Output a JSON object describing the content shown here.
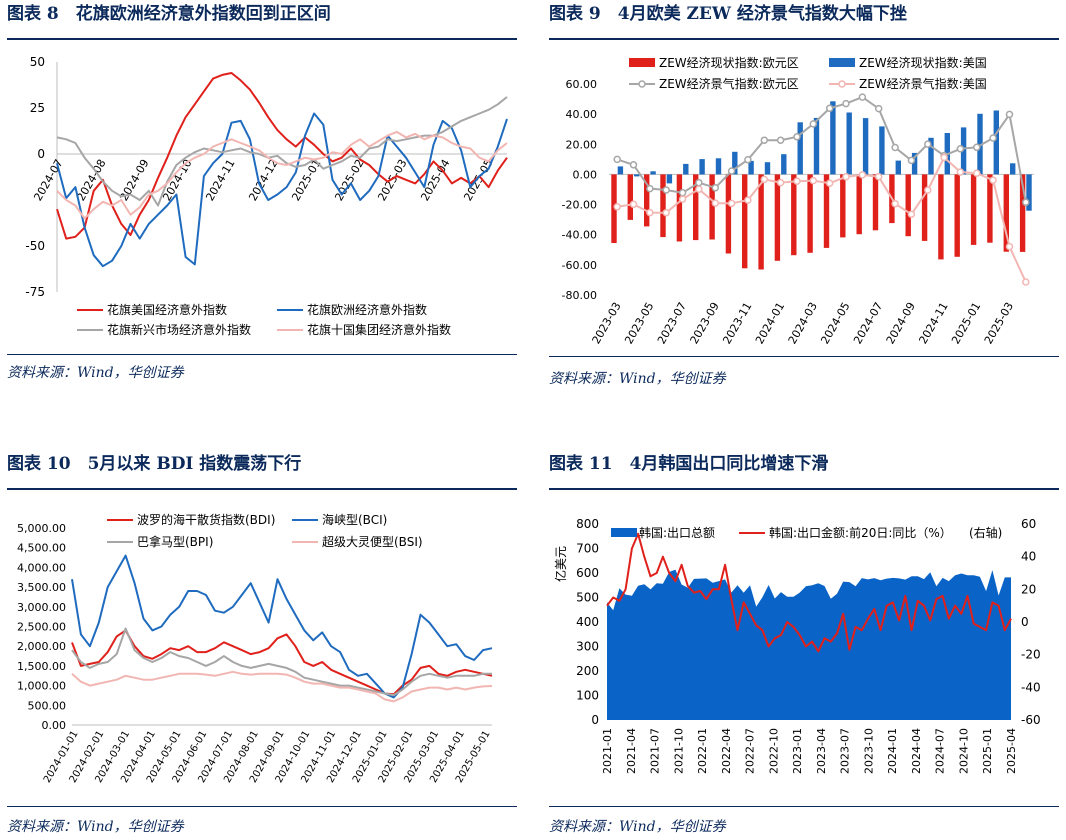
{
  "panels": [
    {
      "title": "图表 8　花旗欧洲经济意外指数回到正区间",
      "source": "资料来源：Wind，华创证券"
    },
    {
      "title": "图表 9　4月欧美 ZEW 经济景气指数大幅下挫",
      "source": "资料来源：Wind，华创证券"
    },
    {
      "title": "图表 10　5月以来 BDI 指数震荡下行",
      "source": "资料来源：Wind，华创证券"
    },
    {
      "title": "图表 11　4月韩国出口同比增速下滑",
      "source": "资料来源：Wind，华创证券"
    }
  ],
  "chart_data": [
    {
      "type": "line",
      "ylim": [
        -75,
        50
      ],
      "yticks": [
        50,
        25,
        0,
        -50,
        -75
      ],
      "xticks": [
        "2024-07",
        "2024-08",
        "2024-09",
        "2024-10",
        "2024-11",
        "2024-12",
        "2025-01",
        "2025-02",
        "2025-03",
        "2025-04",
        "2025-05"
      ],
      "grid": false,
      "legend_position": "bottom",
      "series": [
        {
          "name": "花旗美国经济意外指数",
          "color": "#e0201b",
          "values": [
            -30,
            -46,
            -45,
            -40,
            -20,
            -14,
            -28,
            -38,
            -44,
            -33,
            -25,
            -13,
            -2,
            10,
            20,
            27,
            34,
            41,
            43,
            44,
            40,
            35,
            28,
            20,
            13,
            8,
            4,
            9,
            5,
            0,
            -4,
            -2,
            3,
            -3,
            -6,
            -11,
            -15,
            -12,
            -14,
            -16,
            -11,
            -4,
            -9,
            -16,
            -13,
            -16,
            -12,
            -18,
            -9,
            -2
          ]
        },
        {
          "name": "花旗欧洲经济意外指数",
          "color": "#1f6bbf",
          "values": [
            -5,
            -24,
            -18,
            -40,
            -55,
            -61,
            -58,
            -50,
            -38,
            -46,
            -38,
            -33,
            -28,
            -22,
            -56,
            -60,
            -12,
            -5,
            0,
            17,
            18,
            8,
            -16,
            -25,
            -22,
            -18,
            -10,
            10,
            22,
            16,
            -14,
            -22,
            -16,
            -25,
            -20,
            -12,
            10,
            4,
            -2,
            -10,
            -18,
            5,
            18,
            14,
            2,
            -18,
            -12,
            -8,
            4,
            19
          ]
        },
        {
          "name": "花旗新兴市场经济意外指数",
          "color": "#a6a6a6",
          "values": [
            9,
            8,
            6,
            -2,
            -8,
            -15,
            -20,
            -23,
            -22,
            -25,
            -20,
            -28,
            -15,
            -6,
            -2,
            1,
            3,
            2,
            1,
            2,
            3,
            1,
            0,
            -2,
            -1,
            -5,
            -7,
            -6,
            -3,
            -8,
            -6,
            -4,
            -1,
            -2,
            3,
            4,
            8,
            7,
            8,
            9,
            10,
            10,
            12,
            15,
            18,
            20,
            22,
            24,
            27,
            31
          ]
        },
        {
          "name": "花旗十国集团经济意外指数",
          "color": "#f2b6b2",
          "values": [
            -20,
            -25,
            -28,
            -35,
            -30,
            -26,
            -28,
            -25,
            -33,
            -29,
            -22,
            -20,
            -16,
            -10,
            -5,
            -2,
            0,
            4,
            6,
            8,
            6,
            4,
            2,
            -2,
            -5,
            -6,
            -4,
            -2,
            -3,
            -2,
            1,
            0,
            5,
            8,
            4,
            7,
            10,
            12,
            9,
            11,
            8,
            10,
            9,
            6,
            4,
            3,
            -2,
            -4,
            2,
            6
          ]
        }
      ]
    },
    {
      "type": "bar",
      "ylim": [
        -80,
        60
      ],
      "yticks": [
        "60.00",
        "40.00",
        "20.00",
        "0.00",
        "-20.00",
        "-40.00",
        "-60.00",
        "-80.00"
      ],
      "categories": [
        "2023-03",
        "2023-04",
        "2023-05",
        "2023-06",
        "2023-07",
        "2023-08",
        "2023-09",
        "2023-10",
        "2023-11",
        "2023-12",
        "2024-01",
        "2024-02",
        "2024-03",
        "2024-04",
        "2024-05",
        "2024-06",
        "2024-07",
        "2024-08",
        "2024-09",
        "2024-10",
        "2024-11",
        "2024-12",
        "2025-01",
        "2025-02",
        "2025-03",
        "2025-04"
      ],
      "xticks": [
        "2023-03",
        "2023-05",
        "2023-07",
        "2023-09",
        "2023-11",
        "2024-01",
        "2024-03",
        "2024-05",
        "2024-07",
        "2024-09",
        "2024-11",
        "2025-01",
        "2025-03"
      ],
      "legend_position": "top",
      "series": [
        {
          "name": "ZEW经济现状指数:欧元区",
          "kind": "bar",
          "color": "#e0201b",
          "values": [
            -45.5,
            -30.2,
            -34.5,
            -41.6,
            -44.5,
            -43.6,
            -43.2,
            -52.5,
            -62.3,
            -63.1,
            -57.3,
            -53.6,
            -52.0,
            -48.8,
            -41.8,
            -39.7,
            -37.1,
            -32.3,
            -41.0,
            -44.1,
            -56.4,
            -54.7,
            -46.8,
            -45.3,
            -51.3,
            -51.4
          ]
        },
        {
          "name": "ZEW经济现状指数:美国",
          "kind": "bar",
          "color": "#1f6bbf",
          "values": [
            5.3,
            -1.3,
            2.1,
            -6.0,
            7.0,
            10.2,
            10.7,
            15.0,
            9.0,
            8.1,
            13.4,
            34.6,
            37.5,
            48.5,
            41.1,
            37.4,
            31.9,
            9.2,
            14.3,
            24.3,
            27.5,
            31.2,
            40.2,
            42.4,
            7.4,
            -24.1
          ]
        },
        {
          "name": "ZEW经济景气指数:欧元区",
          "kind": "line",
          "color": "#a6a6a6",
          "values": [
            10.0,
            6.4,
            -9.4,
            -10.3,
            -12.2,
            -5.5,
            -8.9,
            2.3,
            9.8,
            22.7,
            22.7,
            25.0,
            33.5,
            43.9,
            47.0,
            51.3,
            43.7,
            17.9,
            9.3,
            20.1,
            12.5,
            17.0,
            18.0,
            24.2,
            39.8,
            -18.5
          ]
        },
        {
          "name": "ZEW经济景气指数:美国",
          "kind": "line",
          "color": "#f2b6b2",
          "values": [
            -21.5,
            -19.8,
            -25.3,
            -25.4,
            -16.4,
            -9.8,
            -19.0,
            -19.2,
            -17.0,
            -3.3,
            -5.4,
            -4.5,
            -4.1,
            -5.8,
            -1.6,
            -0.3,
            -1.5,
            -19.4,
            -26.4,
            -10.4,
            11.2,
            1.6,
            0.8,
            -3.8,
            -47.9,
            -71.4
          ]
        }
      ]
    },
    {
      "type": "line",
      "ylim": [
        0,
        5000
      ],
      "yticks": [
        "5,000.00",
        "4,500.00",
        "4,000.00",
        "3,500.00",
        "3,000.00",
        "2,500.00",
        "2,000.00",
        "1,500.00",
        "1,000.00",
        "500.00",
        "0.00"
      ],
      "xticks": [
        "2024-01-01",
        "2024-02-01",
        "2024-03-01",
        "2024-04-01",
        "2024-05-01",
        "2024-06-01",
        "2024-07-01",
        "2024-08-01",
        "2024-09-01",
        "2024-10-01",
        "2024-11-01",
        "2024-12-01",
        "2025-01-01",
        "2025-02-01",
        "2025-03-01",
        "2025-04-01",
        "2025-05-01"
      ],
      "legend_position": "top",
      "series": [
        {
          "name": "波罗的海干散货指数(BDI)",
          "color": "#e0201b",
          "values": [
            2094,
            1500,
            1550,
            1600,
            1850,
            2250,
            2400,
            2000,
            1750,
            1680,
            1800,
            1950,
            1900,
            2000,
            1850,
            1850,
            1950,
            2100,
            2000,
            1900,
            1800,
            1850,
            1950,
            2200,
            2300,
            2000,
            1600,
            1500,
            1600,
            1400,
            1300,
            1200,
            1100,
            1000,
            900,
            800,
            780,
            1000,
            1150,
            1450,
            1500,
            1300,
            1250,
            1350,
            1400,
            1350,
            1300,
            1250
          ]
        },
        {
          "name": "海峡型(BCI)",
          "color": "#1f6bbf",
          "values": [
            3700,
            2300,
            2000,
            2600,
            3500,
            3900,
            4300,
            3600,
            2700,
            2400,
            2500,
            2800,
            3000,
            3400,
            3400,
            3300,
            2900,
            2850,
            3000,
            3300,
            3600,
            3100,
            2600,
            3700,
            3200,
            2800,
            2400,
            2150,
            2350,
            2000,
            1850,
            1400,
            1250,
            1300,
            1050,
            800,
            700,
            950,
            1800,
            2800,
            2600,
            2300,
            2000,
            2050,
            1750,
            1650,
            1900,
            1950
          ]
        },
        {
          "name": "巴拿马型(BPI)",
          "color": "#a6a6a6",
          "values": [
            1900,
            1600,
            1450,
            1550,
            1600,
            1800,
            2450,
            1900,
            1700,
            1600,
            1700,
            1850,
            1750,
            1700,
            1600,
            1500,
            1600,
            1750,
            1600,
            1500,
            1450,
            1500,
            1550,
            1500,
            1450,
            1350,
            1200,
            1150,
            1100,
            1050,
            1000,
            1000,
            950,
            900,
            850,
            800,
            760,
            900,
            1100,
            1250,
            1300,
            1250,
            1200,
            1250,
            1250,
            1250,
            1300,
            1300
          ]
        },
        {
          "name": "超级大灵便型(BSI)",
          "color": "#f2b6b2",
          "values": [
            1300,
            1100,
            1000,
            1050,
            1100,
            1150,
            1250,
            1200,
            1150,
            1150,
            1200,
            1250,
            1300,
            1300,
            1300,
            1280,
            1250,
            1300,
            1350,
            1300,
            1280,
            1300,
            1300,
            1300,
            1280,
            1200,
            1100,
            1050,
            1050,
            1000,
            950,
            950,
            900,
            850,
            800,
            650,
            600,
            700,
            850,
            900,
            950,
            950,
            900,
            950,
            900,
            950,
            980,
            990
          ]
        }
      ]
    },
    {
      "type": "area",
      "ylim": [
        0,
        800
      ],
      "y2lim": [
        -60,
        60
      ],
      "yticks": [
        "800",
        "700",
        "600",
        "500",
        "400",
        "300",
        "200",
        "100",
        "0"
      ],
      "y2ticks": [
        "60",
        "40",
        "20",
        "0",
        "-20",
        "-40",
        "-60"
      ],
      "ylabel": "亿美元",
      "y2label": "(右轴)",
      "xticks": [
        "2021-01",
        "2021-04",
        "2021-07",
        "2021-10",
        "2022-01",
        "2022-04",
        "2022-07",
        "2022-10",
        "2023-01",
        "2023-04",
        "2023-07",
        "2023-10",
        "2024-01",
        "2024-04",
        "2024-07",
        "2024-10",
        "2025-01",
        "2025-04"
      ],
      "legend_position": "top",
      "series": [
        {
          "name": "韩国:出口总额",
          "kind": "area",
          "color": "#0a64c8",
          "values": [
            480,
            448,
            538,
            512,
            507,
            548,
            554,
            533,
            558,
            556,
            604,
            614,
            553,
            540,
            576,
            577,
            578,
            560,
            567,
            574,
            520,
            550,
            519,
            550,
            463,
            501,
            551,
            496,
            522,
            503,
            503,
            520,
            546,
            550,
            558,
            547,
            495,
            515,
            565,
            563,
            546,
            579,
            574,
            579,
            570,
            577,
            580,
            578,
            573,
            587,
            587,
            575,
            603,
            546,
            580,
            567,
            591,
            598,
            591,
            591,
            585,
            526,
            612,
            508,
            582,
            582
          ]
        },
        {
          "name": "韩国:出口金额:前20日:同比（%）",
          "kind": "line",
          "color": "#e0201b",
          "values": [
            10,
            15,
            13,
            20,
            45,
            54,
            40,
            28,
            30,
            40,
            30,
            25,
            35,
            22,
            18,
            19,
            14,
            20,
            20,
            35,
            14,
            -5,
            12,
            5,
            -2,
            -5,
            -15,
            -10,
            -8,
            0,
            -3,
            -8,
            -15,
            -12,
            -18,
            -10,
            -12,
            -7,
            5,
            -17,
            -3,
            -5,
            2,
            8,
            -5,
            10,
            12,
            1,
            16,
            -5,
            13,
            10,
            1,
            14,
            16,
            2,
            10,
            5,
            16,
            -1,
            -3,
            -5,
            12,
            10,
            -5,
            2
          ]
        }
      ]
    }
  ]
}
